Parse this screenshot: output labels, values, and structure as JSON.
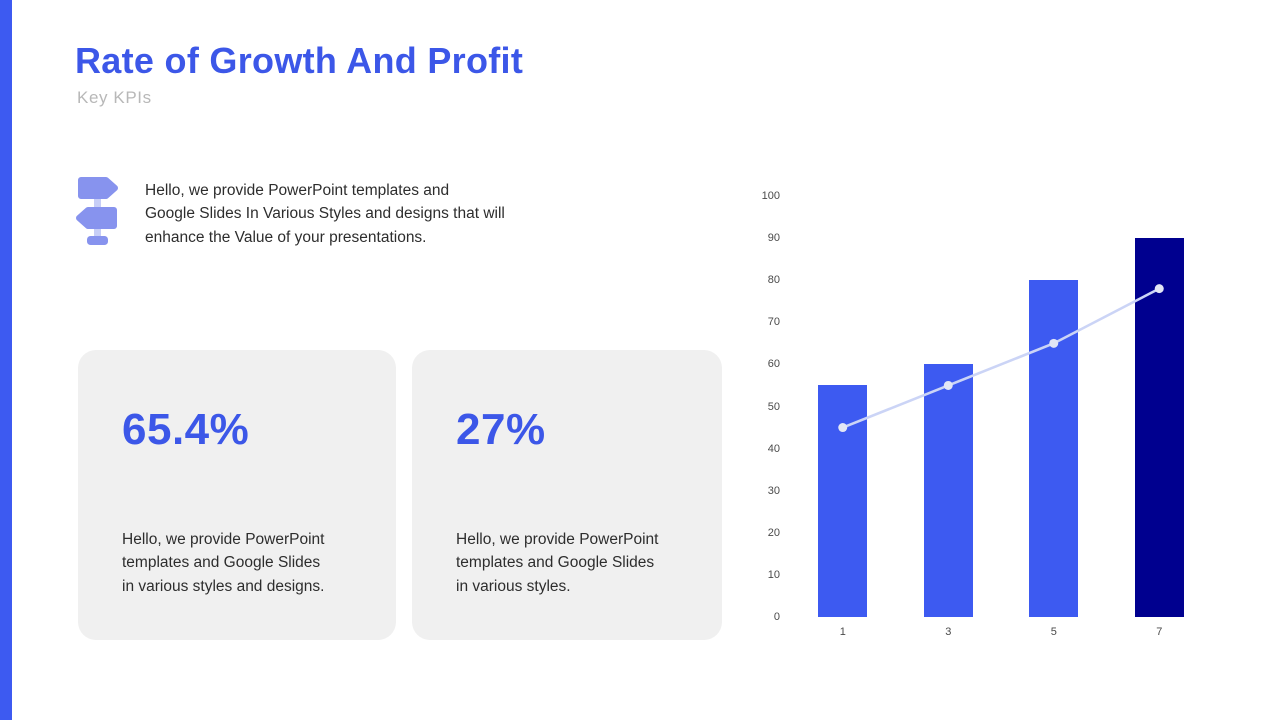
{
  "colors": {
    "accent": "#3D5AF1",
    "title": "#3C57E8",
    "subtitle-gray": "#B8B8B8",
    "body-text": "#2D2D2D",
    "card-bg": "#F0F0F0",
    "kpi-blue": "#3C57E8",
    "tick-gray": "#4A4A4A",
    "icon-sign": "#8793EE",
    "icon-pole": "#C7CEF7"
  },
  "header": {
    "title": "Rate of Growth And Profit",
    "subtitle": "Key KPIs"
  },
  "intro": {
    "icon": "signpost-icon",
    "text": "Hello, we provide PowerPoint templates and\nGoogle Slides In Various Styles and designs that will\nenhance the Value of your presentations."
  },
  "cards": [
    {
      "value": "65.4%",
      "description": "Hello, we provide PowerPoint\ntemplates and Google Slides\nin various styles and designs."
    },
    {
      "value": "27%",
      "description": "Hello, we provide PowerPoint\ntemplates and Google Slides\nin various styles."
    }
  ],
  "chart_data": {
    "type": "bar",
    "title": "",
    "xlabel": "",
    "ylabel": "",
    "categories": [
      "1",
      "3",
      "5",
      "7"
    ],
    "series": [
      {
        "name": "growth-bars",
        "type": "bar",
        "values": [
          55,
          60,
          80,
          90
        ],
        "colors": [
          "#3D5AF1",
          "#3D5AF1",
          "#3D5AF1",
          "#00008F"
        ]
      },
      {
        "name": "profit-line",
        "type": "line",
        "values": [
          45,
          55,
          65,
          78
        ],
        "color": "#CBD4F6",
        "dot_color": "#E2E6F5"
      }
    ],
    "ylim": [
      0,
      100
    ],
    "ytick_step": 10,
    "grid": false,
    "legend": "none"
  }
}
